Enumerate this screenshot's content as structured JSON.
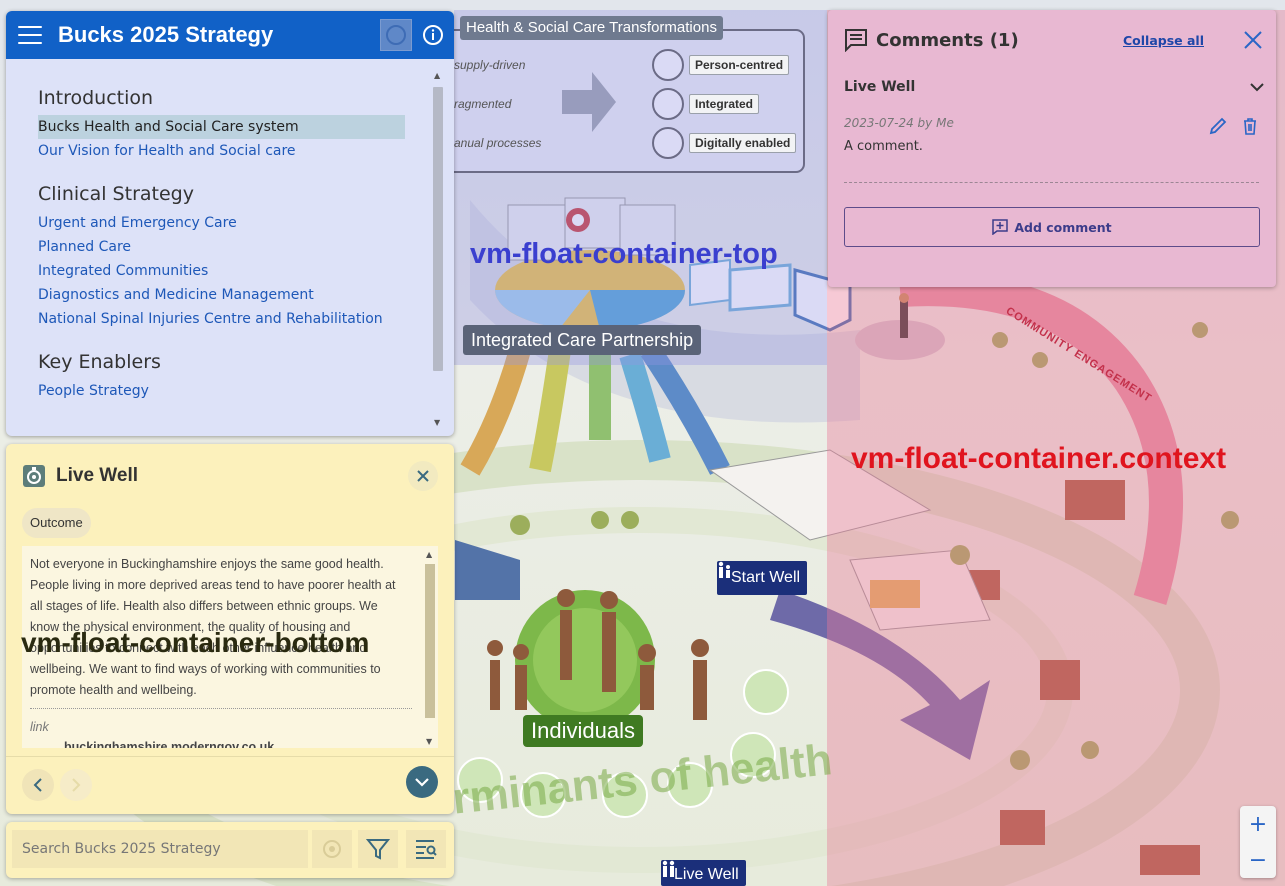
{
  "app": {
    "title": "Bucks 2025 Strategy"
  },
  "navigation": {
    "sections": [
      {
        "heading": "Introduction",
        "links": [
          "Bucks Health and Social Care system",
          "Our Vision for Health and Social care"
        ],
        "active_index": 0
      },
      {
        "heading": "Clinical Strategy",
        "links": [
          "Urgent and Emergency Care",
          "Planned Care",
          "Integrated Communities",
          "Diagnostics and Medicine Management",
          "National Spinal Injuries Centre and Rehabilitation"
        ]
      },
      {
        "heading": "Key Enablers",
        "links": [
          "People Strategy"
        ]
      }
    ]
  },
  "feature": {
    "title": "Live Well",
    "tag": "Outcome",
    "body": "Not everyone in Buckinghamshire enjoys the same good health. People living in more deprived areas tend to have poorer health at all stages of life. Health also differs between ethnic groups. We know the physical environment, the quality of housing and opportunities to connect with each other influence health and wellbeing. We want to find ways of working with communities to promote health and wellbeing.",
    "link_label": "link",
    "link_text": "buckinghamshire.moderngov.co.uk"
  },
  "search": {
    "placeholder": "Search Bucks 2025 Strategy"
  },
  "comments": {
    "title": "Comments (1)",
    "collapse_label": "Collapse all",
    "thread_title": "Live Well",
    "meta": "2023-07-24 by Me",
    "text": "A comment.",
    "add_label": "Add comment"
  },
  "map": {
    "transformations_title": "Health & Social Care Transformations",
    "transformations_from": [
      "supply-driven",
      "ragmented",
      "anual processes"
    ],
    "transformations_to": [
      "Person-centred",
      "Integrated",
      "Digitally enabled"
    ],
    "icp_label": "Integrated Care Partnership",
    "start_well": "Start Well",
    "live_well": "Live Well",
    "individuals": "Individuals",
    "determinants": "rminants of health",
    "community": "COMMUNITY ENGAGEMENT"
  },
  "overlay_labels": {
    "top": "vm-float-container-top",
    "context": "vm-float-container.context",
    "bottom": "vm-float-container-bottom"
  },
  "zoom": {
    "in": "+",
    "out": "−"
  },
  "colors": {
    "header_blue": "#1161c7",
    "nav_bg": "#dde2f8",
    "feature_bg": "#fcf1bc",
    "comments_bg": "#e8b8d2",
    "link_blue": "#1e58b8"
  }
}
